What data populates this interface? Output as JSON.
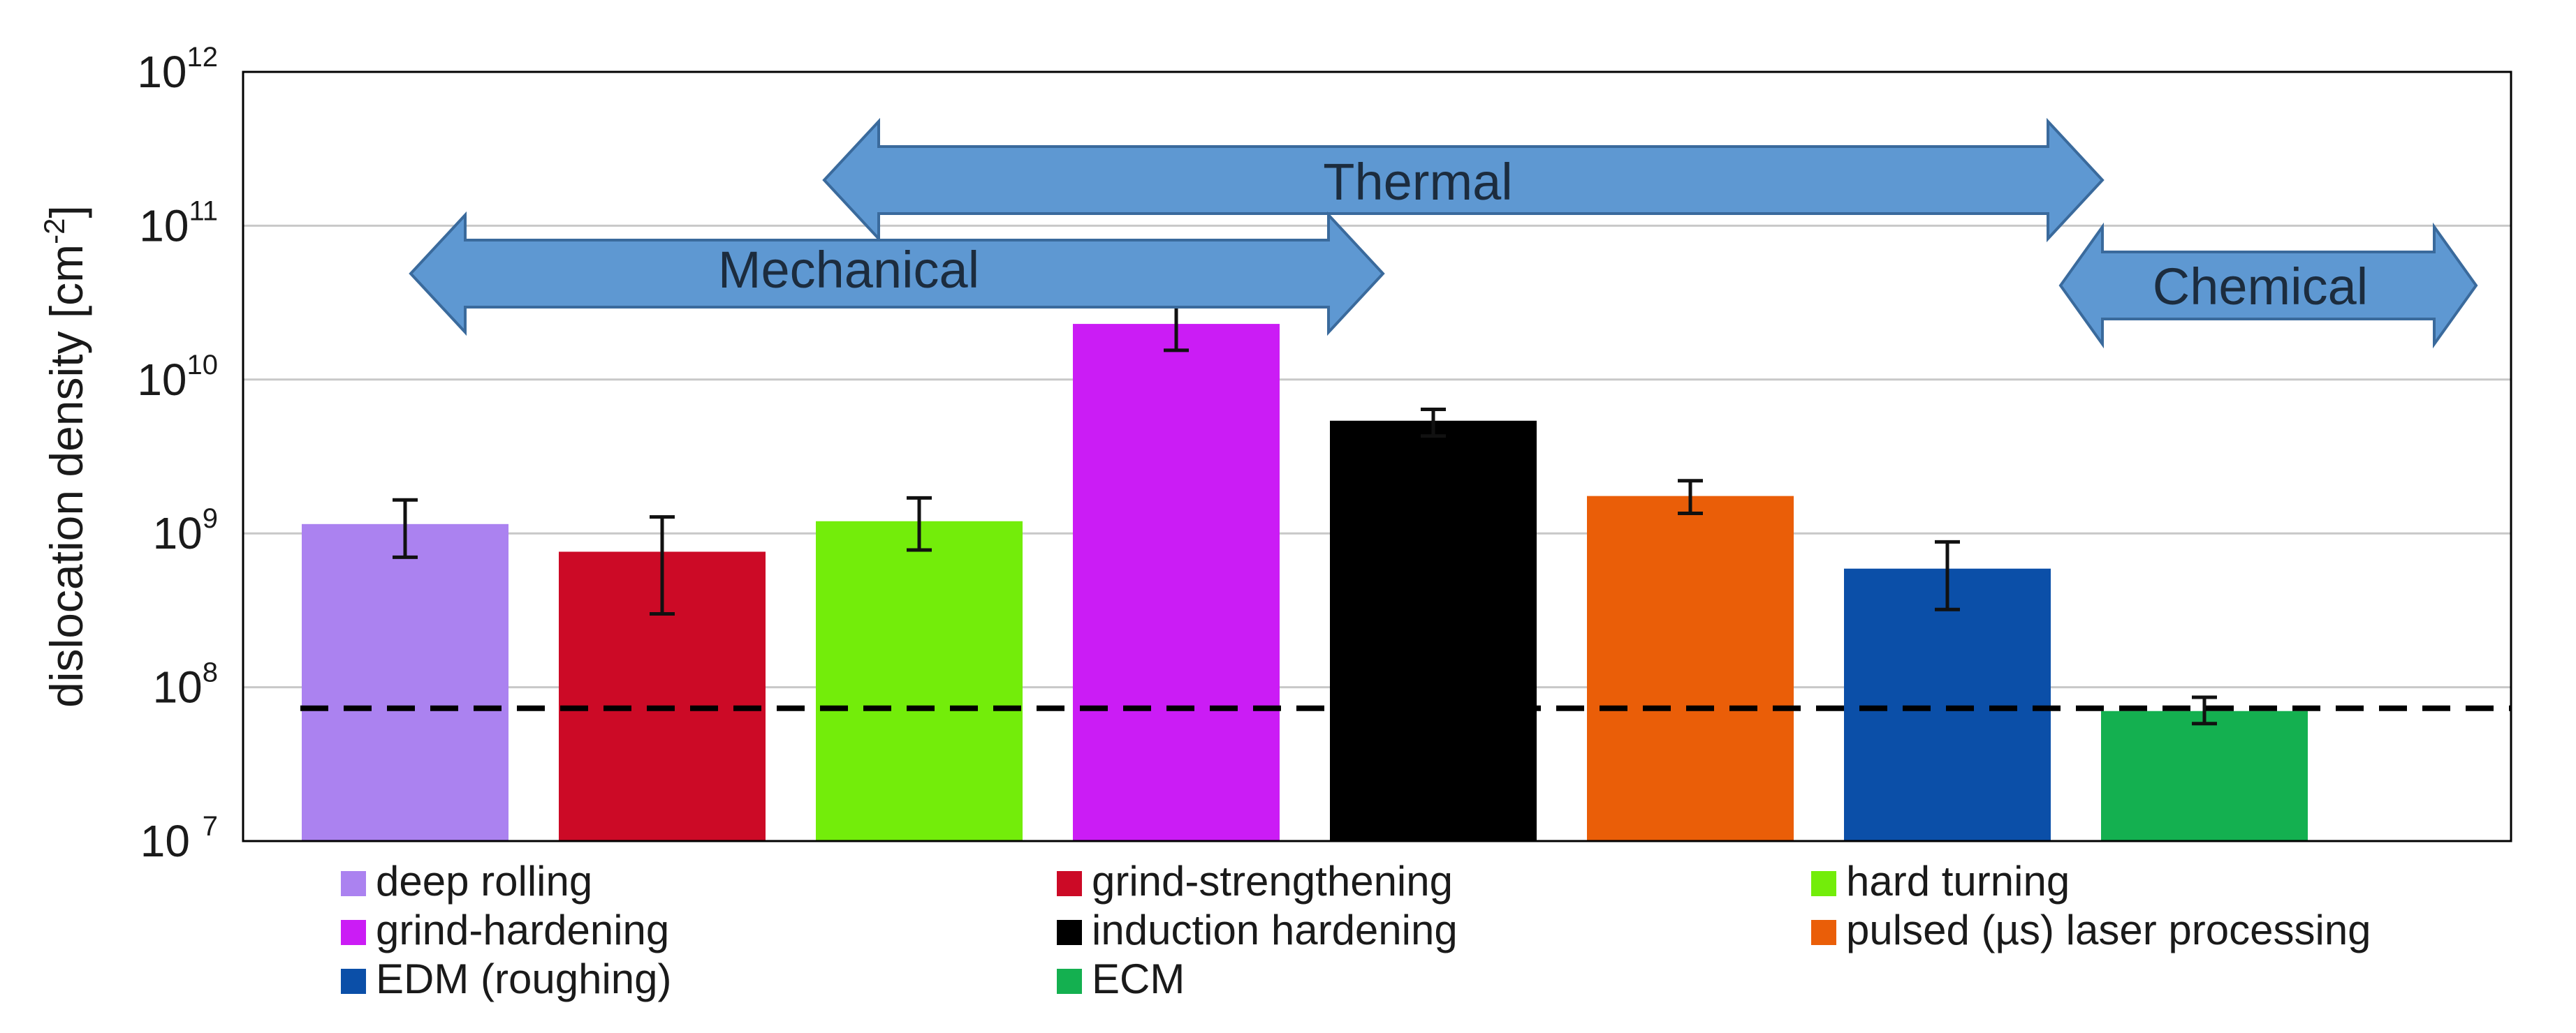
{
  "chart_data": {
    "type": "bar",
    "title": "",
    "xlabel": "",
    "ylabel": "dislocation density [cm",
    "ylabel_exp": "-2",
    "ylabel_close": "]",
    "yscale": "log",
    "ylim_exp": [
      7,
      12
    ],
    "yticks": [
      {
        "base": "10",
        "exp": "12",
        "value_exp": 12
      },
      {
        "base": "10",
        "exp": "11",
        "value_exp": 11
      },
      {
        "base": "10",
        "exp": "10",
        "value_exp": 10
      },
      {
        "base": "10",
        "exp": "9",
        "value_exp": 9
      },
      {
        "base": "10",
        "exp": "8",
        "value_exp": 8
      },
      {
        "base": "10 ",
        "exp": "7",
        "value_exp": 7
      }
    ],
    "grid": true,
    "reference_line": 73000000,
    "categories": [
      "deep rolling",
      "grind-strengthening",
      "hard turning",
      "grind-hardening",
      "induction hardening",
      "pulsed (µs) laser processing",
      "EDM (roughing)",
      "ECM"
    ],
    "values": [
      1150000000,
      760000000,
      1200000000,
      23000000000,
      5400000000,
      1750000000,
      590000000,
      70000000
    ],
    "err_low": [
      700000000,
      300000000,
      780000000,
      15500000000,
      4300000000,
      1350000000,
      320000000,
      58000000
    ],
    "err_high": [
      1650000000,
      1280000000,
      1700000000,
      31000000000,
      6400000000,
      2200000000,
      880000000,
      86000000
    ],
    "colors": [
      "#ab82f0",
      "#cc0a26",
      "#73ed0a",
      "#cb1cf5",
      "#000000",
      "#ea5e08",
      "#0b4fa8",
      "#14b050"
    ],
    "groups": [
      {
        "label": "Thermal",
        "color": "#5e98d2"
      },
      {
        "label": "Mechanical",
        "color": "#5e98d2"
      },
      {
        "label": "Chemical",
        "color": "#5e98d2"
      }
    ],
    "legend": [
      {
        "label": "deep rolling",
        "color": "#ab82f0"
      },
      {
        "label": "grind-strengthening",
        "color": "#cc0a26"
      },
      {
        "label": "hard turning",
        "color": "#73ed0a"
      },
      {
        "label": "grind-hardening",
        "color": "#cb1cf5"
      },
      {
        "label": "induction hardening",
        "color": "#000000"
      },
      {
        "label": "pulsed (µs) laser processing",
        "color": "#ea5e08"
      },
      {
        "label": "EDM (roughing)",
        "color": "#0b4fa8"
      },
      {
        "label": "ECM",
        "color": "#14b050"
      }
    ],
    "legend_position": "bottom"
  }
}
